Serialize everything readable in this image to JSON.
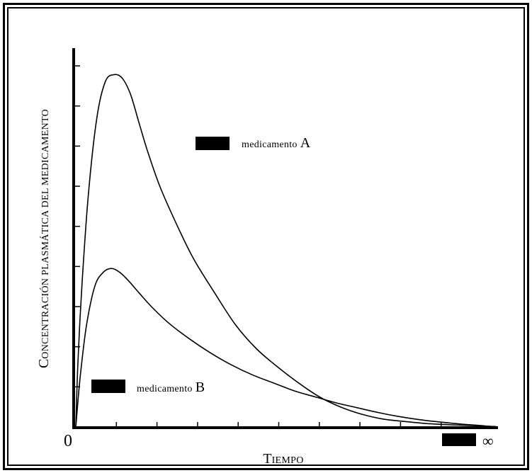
{
  "chart_data": {
    "type": "line",
    "title": "",
    "xlabel": "Tiempo",
    "ylabel": "Concentración plasmática del medicamento",
    "x_tick_labels": {
      "origin": "0",
      "end": "∞"
    },
    "xlim": [
      0,
      10
    ],
    "ylim": [
      0,
      9
    ],
    "grid": false,
    "legend": "inline",
    "series": [
      {
        "name": "medicamento A",
        "x": [
          0,
          0.08,
          0.2,
          0.4,
          0.6,
          0.8,
          1.0,
          1.2,
          1.4,
          1.5,
          1.7,
          2.0,
          2.3,
          2.6,
          3.0,
          3.5,
          4.0,
          4.5,
          5.0,
          5.5,
          6.0,
          6.5,
          7.0,
          7.5,
          8.0,
          8.5,
          9.0,
          9.5,
          10.0
        ],
        "y": [
          0,
          1.8,
          4.0,
          6.6,
          8.1,
          8.7,
          8.8,
          8.7,
          8.4,
          8.1,
          7.3,
          6.3,
          5.3,
          4.6,
          3.7,
          2.7,
          2.05,
          1.5,
          1.15,
          0.8,
          0.45,
          0.25,
          0.12,
          0.06,
          0.02,
          0,
          0,
          0,
          0
        ],
        "line_x": [
          0,
          0.1,
          0.2,
          0.4,
          0.6,
          0.8,
          1.0,
          1.2,
          1.4,
          1.6,
          1.8,
          2.0,
          2.5,
          3.0,
          3.5,
          4.0,
          4.5,
          5.0,
          5.5,
          6.0,
          6.5,
          7.0,
          7.5,
          8.0,
          8.5,
          9.0,
          9.5,
          10.0
        ]
      }
    ]
  },
  "lines": {
    "A": {
      "name": "medicamento A",
      "x": [
        0,
        0.05,
        0.15,
        0.3,
        0.5,
        0.7,
        0.9,
        1.1,
        1.3,
        1.5,
        1.7,
        2.0,
        2.4,
        2.8,
        3.3,
        3.8,
        4.3,
        4.8,
        5.3,
        5.8,
        6.3,
        6.8,
        7.3,
        7.8,
        8.3,
        8.8,
        9.3,
        9.8,
        10.0
      ],
      "y": [
        0,
        1.6,
        3.6,
        5.8,
        7.7,
        8.6,
        8.78,
        8.7,
        8.3,
        7.6,
        6.9,
        6.0,
        5.05,
        4.2,
        3.35,
        2.55,
        1.95,
        1.5,
        1.1,
        0.75,
        0.5,
        0.32,
        0.2,
        0.14,
        0.09,
        0.06,
        0.04,
        0.02,
        0.01
      ]
    },
    "B": {
      "name": "medicamento B",
      "x": [
        0,
        0.1,
        0.25,
        0.45,
        0.65,
        0.85,
        1.05,
        1.25,
        1.5,
        1.8,
        2.2,
        2.7,
        3.2,
        3.7,
        4.2,
        4.7,
        5.2,
        5.7,
        6.2,
        6.7,
        7.2,
        7.7,
        8.2,
        8.7,
        9.2,
        9.7,
        10.0
      ],
      "y": [
        0,
        1.2,
        2.5,
        3.5,
        3.85,
        3.95,
        3.85,
        3.65,
        3.35,
        3.0,
        2.6,
        2.2,
        1.85,
        1.55,
        1.3,
        1.1,
        0.9,
        0.75,
        0.6,
        0.48,
        0.36,
        0.26,
        0.18,
        0.12,
        0.07,
        0.03,
        0.0
      ]
    }
  },
  "legend": {
    "a_label": "medicamento",
    "a_letter": "A",
    "b_label": "medicamento",
    "b_letter": "B"
  },
  "axis_text": {
    "x_origin": "0",
    "x_end": "∞",
    "x_title_first": "T",
    "x_title_rest": "IEMPO",
    "y_title_first": "C",
    "y_title_rest": "ONCENTRACIÓN PLASMÁTICA DEL MEDICAMENTO"
  },
  "colors": {
    "line": "#000000",
    "background": "#ffffff",
    "legend_swatch": "#000000"
  }
}
